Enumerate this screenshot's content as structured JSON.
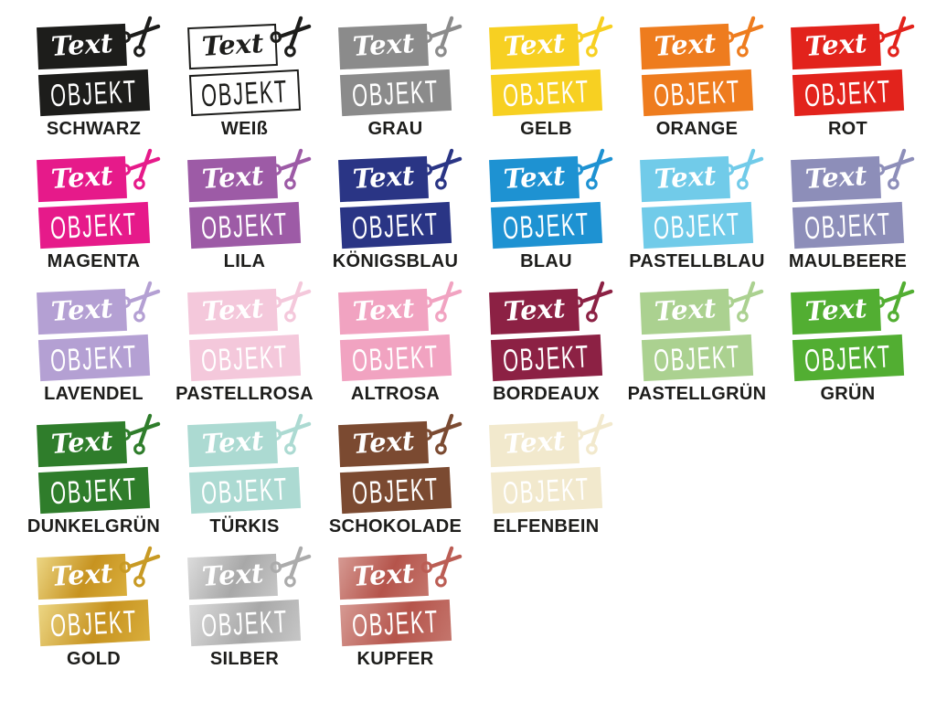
{
  "page": {
    "background": "#ffffff"
  },
  "logo": {
    "script_text": "Text",
    "block_text": "OBJEKT",
    "scissors_icon": "scissors"
  },
  "rows": [
    {
      "swatches": [
        {
          "label": "SCHWARZ",
          "style": "solid",
          "color": "#1d1d1b",
          "content_color": "#ffffff"
        },
        {
          "label": "WEIß",
          "style": "outline",
          "color": "#ffffff",
          "content_color": "#1d1d1b",
          "border_color": "#1d1d1b"
        },
        {
          "label": "GRAU",
          "style": "solid",
          "color": "#8b8b8b",
          "content_color": "#ffffff"
        },
        {
          "label": "GELB",
          "style": "solid",
          "color": "#f7d022",
          "content_color": "#ffffff"
        },
        {
          "label": "ORANGE",
          "style": "solid",
          "color": "#ee7c1e",
          "content_color": "#ffffff"
        },
        {
          "label": "ROT",
          "style": "solid",
          "color": "#e2231c",
          "content_color": "#ffffff"
        }
      ]
    },
    {
      "swatches": [
        {
          "label": "MAGENTA",
          "style": "solid",
          "color": "#e61a8a",
          "content_color": "#ffffff"
        },
        {
          "label": "LILA",
          "style": "solid",
          "color": "#9d5ba6",
          "content_color": "#ffffff"
        },
        {
          "label": "KÖNIGSBLAU",
          "style": "solid",
          "color": "#2a3585",
          "content_color": "#ffffff"
        },
        {
          "label": "BLAU",
          "style": "solid",
          "color": "#1e92d2",
          "content_color": "#ffffff"
        },
        {
          "label": "PASTELLBLAU",
          "style": "solid",
          "color": "#71cbe9",
          "content_color": "#ffffff"
        },
        {
          "label": "MAULBEERE",
          "style": "solid",
          "color": "#8d8eb9",
          "content_color": "#ffffff"
        }
      ]
    },
    {
      "swatches": [
        {
          "label": "LAVENDEL",
          "style": "solid",
          "color": "#b4a0d3",
          "content_color": "#ffffff"
        },
        {
          "label": "PASTELLROSA",
          "style": "solid",
          "color": "#f4c8db",
          "content_color": "#ffffff"
        },
        {
          "label": "ALTROSA",
          "style": "solid",
          "color": "#f1a3c1",
          "content_color": "#ffffff"
        },
        {
          "label": "BORDEAUX",
          "style": "solid",
          "color": "#8c2144",
          "content_color": "#ffffff"
        },
        {
          "label": "PASTELLGRÜN",
          "style": "solid",
          "color": "#abd190",
          "content_color": "#ffffff"
        },
        {
          "label": "GRÜN",
          "style": "solid",
          "color": "#52ae32",
          "content_color": "#ffffff"
        }
      ]
    },
    {
      "swatches": [
        {
          "label": "DUNKELGRÜN",
          "style": "solid",
          "color": "#2f7d2b",
          "content_color": "#ffffff"
        },
        {
          "label": "TÜRKIS",
          "style": "solid",
          "color": "#acdad2",
          "content_color": "#ffffff"
        },
        {
          "label": "SCHOKOLADE",
          "style": "solid",
          "color": "#7b4a31",
          "content_color": "#ffffff"
        },
        {
          "label": "ELFENBEIN",
          "style": "solid",
          "color": "#f2e9cd",
          "content_color": "#ffffff"
        }
      ]
    },
    {
      "swatches": [
        {
          "label": "GOLD",
          "style": "gradient",
          "gradient": [
            "#ecd684",
            "#c79320",
            "#d9ae3c"
          ],
          "scissors_color": "#c89a24",
          "content_color": "#ffffff"
        },
        {
          "label": "SILBER",
          "style": "gradient",
          "gradient": [
            "#dcdcdc",
            "#a8a8a8",
            "#c6c6c6"
          ],
          "scissors_color": "#ababab",
          "content_color": "#ffffff"
        },
        {
          "label": "KUPFER",
          "style": "gradient",
          "gradient": [
            "#d69a93",
            "#b5544b",
            "#c4756c"
          ],
          "scissors_color": "#bb5d54",
          "content_color": "#ffffff"
        }
      ]
    }
  ]
}
